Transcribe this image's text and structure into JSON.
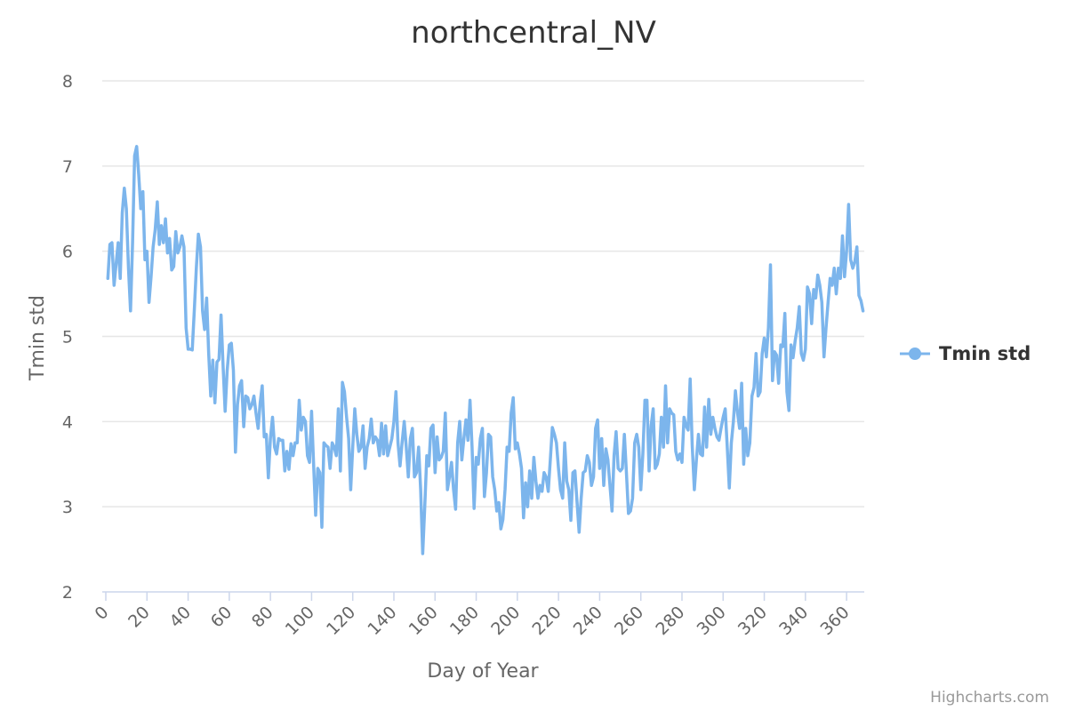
{
  "credits": "Highcharts.com",
  "chart_data": {
    "type": "line",
    "title": "northcentral_NV",
    "xlabel": "Day of Year",
    "ylabel": "Tmin std",
    "xlim": [
      0,
      366
    ],
    "ylim": [
      2,
      8
    ],
    "x_ticks": [
      0,
      20,
      40,
      60,
      80,
      100,
      120,
      140,
      160,
      180,
      200,
      220,
      240,
      260,
      280,
      300,
      320,
      340,
      360
    ],
    "y_ticks": [
      2,
      3,
      4,
      5,
      6,
      7,
      8
    ],
    "grid": "horizontal",
    "legend_position": "right",
    "series": [
      {
        "name": "Tmin std",
        "color": "#7cb5ec",
        "x_start": 1,
        "x_step": 1,
        "values": [
          5.68,
          6.08,
          6.1,
          5.6,
          5.85,
          6.1,
          5.68,
          6.45,
          6.74,
          6.5,
          5.8,
          5.3,
          6.1,
          7.12,
          7.23,
          6.9,
          6.5,
          6.7,
          5.9,
          6.0,
          5.4,
          5.7,
          6.05,
          6.25,
          6.58,
          6.08,
          6.3,
          6.1,
          6.38,
          5.98,
          6.15,
          5.78,
          5.82,
          6.23,
          5.98,
          6.05,
          6.18,
          6.05,
          5.1,
          4.85,
          4.85,
          4.84,
          5.3,
          5.8,
          6.2,
          6.05,
          5.3,
          5.08,
          5.45,
          4.8,
          4.3,
          4.72,
          4.22,
          4.7,
          4.73,
          5.25,
          4.65,
          4.12,
          4.6,
          4.9,
          4.92,
          4.6,
          3.64,
          4.2,
          4.42,
          4.48,
          3.94,
          4.3,
          4.28,
          4.15,
          4.2,
          4.3,
          4.1,
          3.92,
          4.22,
          4.42,
          3.82,
          3.85,
          3.34,
          3.8,
          4.05,
          3.7,
          3.62,
          3.8,
          3.78,
          3.78,
          3.42,
          3.65,
          3.44,
          3.74,
          3.6,
          3.75,
          3.75,
          4.25,
          3.9,
          4.05,
          4.0,
          3.6,
          3.52,
          4.12,
          3.5,
          2.9,
          3.45,
          3.4,
          2.76,
          3.75,
          3.72,
          3.7,
          3.45,
          3.75,
          3.7,
          3.6,
          4.15,
          3.42,
          4.46,
          4.35,
          4.05,
          3.8,
          3.2,
          3.7,
          4.15,
          3.85,
          3.65,
          3.7,
          3.95,
          3.45,
          3.7,
          3.8,
          4.03,
          3.75,
          3.82,
          3.78,
          3.6,
          3.98,
          3.62,
          3.95,
          3.6,
          3.7,
          3.8,
          4.0,
          4.35,
          3.75,
          3.48,
          3.75,
          4.0,
          3.7,
          3.35,
          3.8,
          3.92,
          3.35,
          3.4,
          3.7,
          3.2,
          2.45,
          3.0,
          3.6,
          3.48,
          3.92,
          3.96,
          3.4,
          3.82,
          3.55,
          3.58,
          3.65,
          4.1,
          3.2,
          3.35,
          3.52,
          3.2,
          2.97,
          3.75,
          4.0,
          3.55,
          3.8,
          4.02,
          3.78,
          4.25,
          3.7,
          2.98,
          3.58,
          3.5,
          3.8,
          3.92,
          3.12,
          3.4,
          3.85,
          3.82,
          3.35,
          3.2,
          2.95,
          3.05,
          2.74,
          2.85,
          3.2,
          3.7,
          3.65,
          4.1,
          4.28,
          3.68,
          3.75,
          3.62,
          3.45,
          2.87,
          3.28,
          3.0,
          3.42,
          3.1,
          3.58,
          3.3,
          3.1,
          3.25,
          3.18,
          3.4,
          3.35,
          3.18,
          3.55,
          3.93,
          3.85,
          3.75,
          3.45,
          3.2,
          3.1,
          3.75,
          3.3,
          3.2,
          2.84,
          3.4,
          3.42,
          3.05,
          2.7,
          3.1,
          3.4,
          3.42,
          3.6,
          3.52,
          3.25,
          3.35,
          3.92,
          4.02,
          3.45,
          3.8,
          3.25,
          3.68,
          3.55,
          3.25,
          2.95,
          3.6,
          3.88,
          3.45,
          3.42,
          3.45,
          3.85,
          3.4,
          2.92,
          2.95,
          3.1,
          3.75,
          3.85,
          3.7,
          3.2,
          3.62,
          4.25,
          4.25,
          3.42,
          3.95,
          4.15,
          3.45,
          3.5,
          3.62,
          4.05,
          3.7,
          4.42,
          3.75,
          4.15,
          4.1,
          4.08,
          3.65,
          3.55,
          3.62,
          3.52,
          4.05,
          3.95,
          3.9,
          4.5,
          3.72,
          3.2,
          3.55,
          3.85,
          3.62,
          3.6,
          4.17,
          3.7,
          4.26,
          3.85,
          4.05,
          3.92,
          3.82,
          3.78,
          3.92,
          4.05,
          4.15,
          3.7,
          3.22,
          3.75,
          4.0,
          4.36,
          4.1,
          3.92,
          4.45,
          3.5,
          3.92,
          3.6,
          3.75,
          4.3,
          4.4,
          4.8,
          4.3,
          4.35,
          4.8,
          4.98,
          4.76,
          5.1,
          5.84,
          4.48,
          4.82,
          4.78,
          4.45,
          4.9,
          4.88,
          5.27,
          4.35,
          4.13,
          4.9,
          4.75,
          4.95,
          5.1,
          5.35,
          4.8,
          4.72,
          4.85,
          5.58,
          5.5,
          5.15,
          5.55,
          5.45,
          5.72,
          5.6,
          5.4,
          4.76,
          5.1,
          5.4,
          5.68,
          5.6,
          5.8,
          5.5,
          5.8,
          5.68,
          6.18,
          5.7,
          6.0,
          6.55,
          5.9,
          5.8,
          5.88,
          6.05,
          5.48,
          5.42,
          5.3
        ]
      }
    ]
  }
}
